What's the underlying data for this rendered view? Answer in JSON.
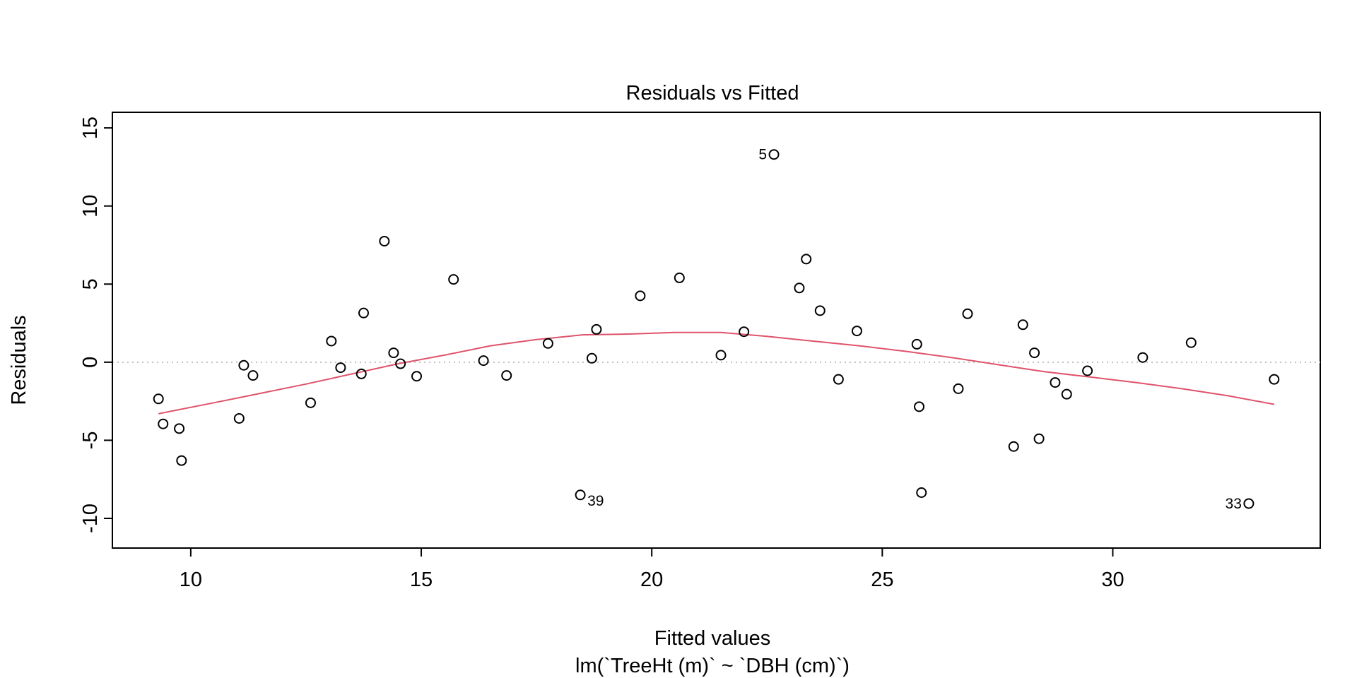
{
  "chart_data": {
    "type": "scatter",
    "title": "Residuals vs Fitted",
    "xlabel": "Fitted values",
    "xsublabel": "lm(`TreeHt (m)` ~ `DBH (cm)`)",
    "ylabel": "Residuals",
    "xlim": [
      8.3,
      34.5
    ],
    "ylim": [
      -11.9,
      16
    ],
    "xticks": [
      10,
      15,
      20,
      25,
      30
    ],
    "yticks": [
      -10,
      -5,
      0,
      5,
      10,
      15
    ],
    "reference_line_y": 0,
    "colors": {
      "points": "#000000",
      "smooth": "#DF536B",
      "reference": "#BEBEBE"
    },
    "points": [
      {
        "x": 9.3,
        "y": -2.35
      },
      {
        "x": 9.4,
        "y": -3.95
      },
      {
        "x": 9.75,
        "y": -4.25
      },
      {
        "x": 9.8,
        "y": -6.3
      },
      {
        "x": 11.05,
        "y": -3.6
      },
      {
        "x": 11.15,
        "y": -0.2
      },
      {
        "x": 11.35,
        "y": -0.85
      },
      {
        "x": 12.6,
        "y": -2.6
      },
      {
        "x": 13.05,
        "y": 1.35
      },
      {
        "x": 13.25,
        "y": -0.35
      },
      {
        "x": 13.7,
        "y": -0.75
      },
      {
        "x": 13.75,
        "y": 3.15
      },
      {
        "x": 14.2,
        "y": 7.75
      },
      {
        "x": 14.4,
        "y": 0.6
      },
      {
        "x": 14.55,
        "y": -0.1
      },
      {
        "x": 14.9,
        "y": -0.9
      },
      {
        "x": 15.7,
        "y": 5.3
      },
      {
        "x": 16.35,
        "y": 0.1
      },
      {
        "x": 16.85,
        "y": -0.85
      },
      {
        "x": 17.75,
        "y": 1.2
      },
      {
        "x": 18.45,
        "y": -8.5,
        "label": "39"
      },
      {
        "x": 18.7,
        "y": 0.25
      },
      {
        "x": 18.8,
        "y": 2.1
      },
      {
        "x": 19.75,
        "y": 4.25
      },
      {
        "x": 20.6,
        "y": 5.4
      },
      {
        "x": 21.5,
        "y": 0.45
      },
      {
        "x": 22.0,
        "y": 1.95
      },
      {
        "x": 22.65,
        "y": 13.3,
        "label": "5"
      },
      {
        "x": 23.2,
        "y": 4.75
      },
      {
        "x": 23.35,
        "y": 6.6
      },
      {
        "x": 23.65,
        "y": 3.3
      },
      {
        "x": 24.05,
        "y": -1.1
      },
      {
        "x": 24.45,
        "y": 2.0
      },
      {
        "x": 25.75,
        "y": 1.15
      },
      {
        "x": 25.8,
        "y": -2.85
      },
      {
        "x": 25.85,
        "y": -8.35
      },
      {
        "x": 26.65,
        "y": -1.7
      },
      {
        "x": 26.85,
        "y": 3.1
      },
      {
        "x": 27.85,
        "y": -5.4
      },
      {
        "x": 28.05,
        "y": 2.4
      },
      {
        "x": 28.3,
        "y": 0.6
      },
      {
        "x": 28.4,
        "y": -4.9
      },
      {
        "x": 28.75,
        "y": -1.3
      },
      {
        "x": 29.0,
        "y": -2.05
      },
      {
        "x": 29.45,
        "y": -0.55
      },
      {
        "x": 30.65,
        "y": 0.3
      },
      {
        "x": 31.7,
        "y": 1.25
      },
      {
        "x": 32.95,
        "y": -9.05,
        "label": "33"
      },
      {
        "x": 33.5,
        "y": -1.1
      }
    ],
    "smooth_line": [
      {
        "x": 9.3,
        "y": -3.3
      },
      {
        "x": 10.5,
        "y": -2.6
      },
      {
        "x": 11.5,
        "y": -2.0
      },
      {
        "x": 12.5,
        "y": -1.4
      },
      {
        "x": 13.5,
        "y": -0.75
      },
      {
        "x": 14.5,
        "y": -0.1
      },
      {
        "x": 15.5,
        "y": 0.45
      },
      {
        "x": 16.5,
        "y": 1.05
      },
      {
        "x": 17.5,
        "y": 1.45
      },
      {
        "x": 18.5,
        "y": 1.75
      },
      {
        "x": 19.5,
        "y": 1.8
      },
      {
        "x": 20.5,
        "y": 1.9
      },
      {
        "x": 21.5,
        "y": 1.9
      },
      {
        "x": 22.5,
        "y": 1.65
      },
      {
        "x": 23.5,
        "y": 1.35
      },
      {
        "x": 24.5,
        "y": 1.05
      },
      {
        "x": 25.5,
        "y": 0.7
      },
      {
        "x": 26.5,
        "y": 0.3
      },
      {
        "x": 27.5,
        "y": -0.15
      },
      {
        "x": 28.5,
        "y": -0.6
      },
      {
        "x": 29.5,
        "y": -0.95
      },
      {
        "x": 30.5,
        "y": -1.3
      },
      {
        "x": 31.5,
        "y": -1.7
      },
      {
        "x": 32.5,
        "y": -2.15
      },
      {
        "x": 33.5,
        "y": -2.7
      }
    ]
  }
}
